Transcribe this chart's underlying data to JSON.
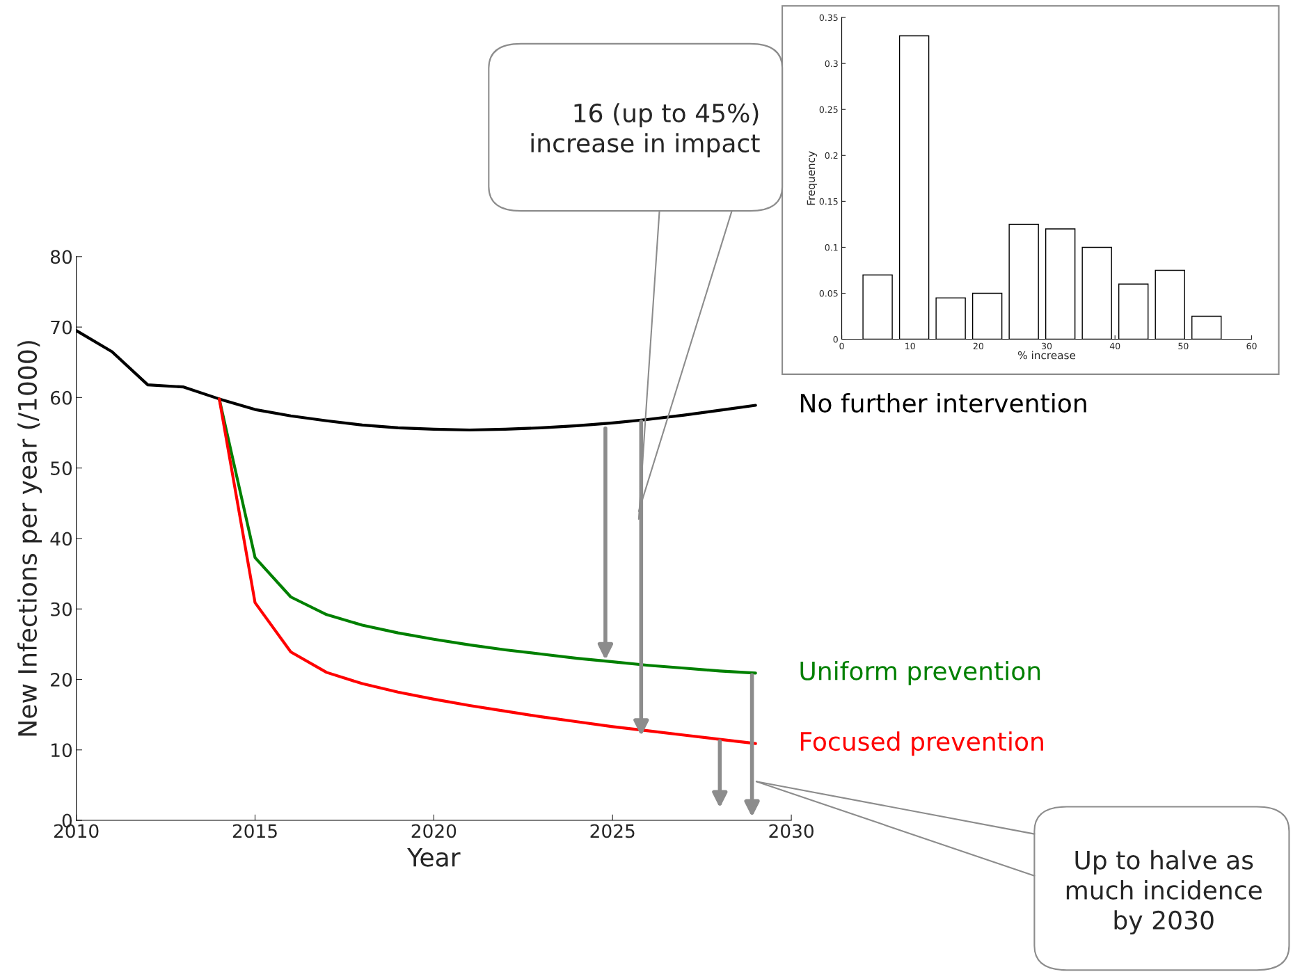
{
  "chart_data": [
    {
      "type": "line",
      "xlabel": "Year",
      "ylabel": "New Infections per year (/1000)",
      "x": [
        2010,
        2011,
        2012,
        2013,
        2014,
        2015,
        2016,
        2017,
        2018,
        2019,
        2020,
        2021,
        2022,
        2023,
        2024,
        2025,
        2026,
        2027,
        2028,
        2029
      ],
      "series": [
        {
          "name": "No further intervention",
          "color": "#000000",
          "values": [
            69.5,
            66.5,
            61.8,
            61.5,
            59.8,
            58.3,
            57.4,
            56.7,
            56.1,
            55.7,
            55.5,
            55.4,
            55.5,
            55.7,
            56.0,
            56.4,
            56.9,
            57.5,
            58.2,
            58.9
          ]
        },
        {
          "name": "Uniform prevention",
          "color": "#008000",
          "values": [
            null,
            null,
            null,
            null,
            59.8,
            37.3,
            31.7,
            29.2,
            27.7,
            26.6,
            25.7,
            24.9,
            24.2,
            23.6,
            23.0,
            22.5,
            22.0,
            21.6,
            21.2,
            20.9
          ]
        },
        {
          "name": "Focused prevention",
          "color": "#ff0000",
          "values": [
            null,
            null,
            null,
            null,
            59.8,
            30.9,
            23.9,
            21.0,
            19.4,
            18.2,
            17.2,
            16.3,
            15.5,
            14.7,
            14.0,
            13.3,
            12.7,
            12.1,
            11.5,
            10.9
          ]
        }
      ],
      "xlim": [
        2010,
        2030
      ],
      "xticks": [
        2010,
        2015,
        2020,
        2025,
        2030
      ],
      "ylim": [
        0,
        80
      ],
      "yticks": [
        0,
        10,
        20,
        30,
        40,
        50,
        60,
        70,
        80
      ],
      "grid": false,
      "legend": false,
      "annotations": [
        "16 (up to 45%)\nincrease in impact",
        "Up to halve as\nmuch incidence\nby 2030"
      ]
    },
    {
      "type": "bar",
      "xlabel": "% increase",
      "ylabel": "Frequency",
      "x": [
        5.25,
        10.6,
        15.95,
        21.3,
        26.65,
        32,
        37.35,
        42.7,
        48.05,
        53.4
      ],
      "values": [
        0.07,
        0.33,
        0.045,
        0.05,
        0.125,
        0.12,
        0.1,
        0.06,
        0.075,
        0.025
      ],
      "color": "#ffffff",
      "xlim": [
        0,
        60
      ],
      "xticks": [
        0,
        10,
        20,
        30,
        40,
        50,
        60
      ],
      "ylim": [
        0,
        0.35
      ],
      "yticks": [
        0,
        0.05,
        0.1,
        0.15,
        0.2,
        0.25,
        0.3,
        0.35
      ],
      "grid": false,
      "legend": false
    }
  ]
}
